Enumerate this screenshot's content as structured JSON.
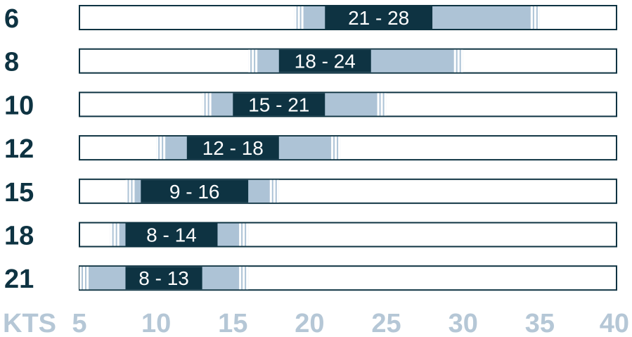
{
  "chart_data": {
    "type": "bar",
    "title": "",
    "xlabel": "KTS",
    "ylabel": "",
    "xlim": [
      5,
      40
    ],
    "x_ticks": [
      5,
      10,
      15,
      20,
      25,
      30,
      35,
      40
    ],
    "grid": false,
    "legend": "none",
    "colors": {
      "ideal": "#0e3342",
      "usable": "#adc3d6",
      "outline": "#0e3342",
      "tick_text": "#b5c7d6",
      "size_text": "#0e3342"
    },
    "rows": [
      {
        "size": "6",
        "usable": [
          19,
          35
        ],
        "ideal": [
          21,
          28
        ],
        "ideal_label": "21 - 28"
      },
      {
        "size": "8",
        "usable": [
          16,
          30
        ],
        "ideal": [
          18,
          24
        ],
        "ideal_label": "18 - 24"
      },
      {
        "size": "10",
        "usable": [
          13,
          25
        ],
        "ideal": [
          15,
          21
        ],
        "ideal_label": "15 - 21"
      },
      {
        "size": "12",
        "usable": [
          10,
          22
        ],
        "ideal": [
          12,
          18
        ],
        "ideal_label": "12 - 18"
      },
      {
        "size": "15",
        "usable": [
          8,
          18
        ],
        "ideal": [
          9,
          16
        ],
        "ideal_label": "9 - 16"
      },
      {
        "size": "18",
        "usable": [
          7,
          16
        ],
        "ideal": [
          8,
          14
        ],
        "ideal_label": "8 - 14"
      },
      {
        "size": "21",
        "usable": [
          5,
          16
        ],
        "ideal": [
          8,
          13
        ],
        "ideal_label": "8 - 13"
      }
    ]
  }
}
